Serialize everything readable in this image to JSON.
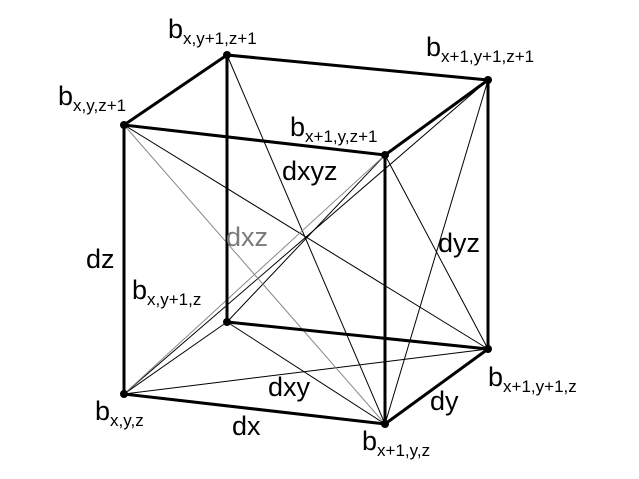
{
  "vertices": {
    "b_xyz": {
      "base": "b",
      "sub": "x,y,z"
    },
    "b_x1yz": {
      "base": "b",
      "sub": "x+1,y,z"
    },
    "b_xy1z": {
      "base": "b",
      "sub": "x,y+1,z"
    },
    "b_x1y1z": {
      "base": "b",
      "sub": "x+1,y+1,z"
    },
    "b_xyz1": {
      "base": "b",
      "sub": "x,y,z+1"
    },
    "b_x1yz1": {
      "base": "b",
      "sub": "x+1,y,z+1"
    },
    "b_xy1z1": {
      "base": "b",
      "sub": "x,y+1,z+1"
    },
    "b_x1y1z1": {
      "base": "b",
      "sub": "x+1,y+1,z+1"
    }
  },
  "distances": {
    "dx": "dx",
    "dy": "dy",
    "dz": "dz",
    "dxy": "dxy",
    "dyz": "dyz",
    "dxz": "dxz",
    "dxyz": "dxyz"
  },
  "colors": {
    "edge": "#000000",
    "diagonal": "#000000",
    "dxz_label": "#7a7a7a"
  }
}
